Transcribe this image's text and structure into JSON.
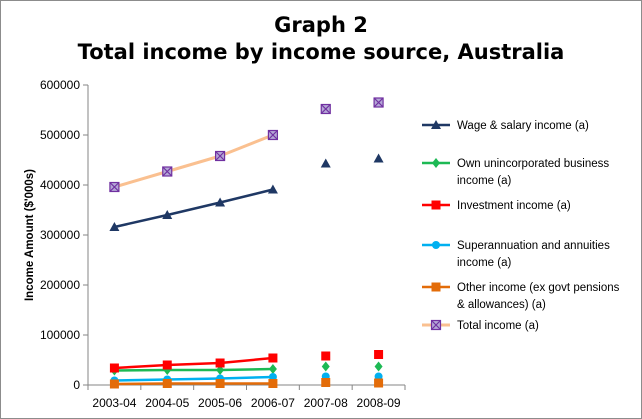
{
  "chart_data": {
    "type": "line",
    "title": "Graph 2",
    "subtitle": "Total income by income source, Australia",
    "xlabel": "",
    "ylabel": "Income Amount ($'000s)",
    "ylim": [
      0,
      600000
    ],
    "yticks": [
      "600000",
      "500000",
      "400000",
      "300000",
      "200000",
      "100000",
      "0"
    ],
    "categories": [
      "2003-04",
      "2004-05",
      "2005-06",
      "2006-07",
      "2007-08",
      "2008-09"
    ],
    "grid": false,
    "legend_position": "right",
    "series": [
      {
        "name": "Wage & salary income (a)",
        "color": "#1f3864",
        "marker": "triangle",
        "values": [
          316000,
          340000,
          365000,
          391000,
          443000,
          453000
        ]
      },
      {
        "name": "Own unincorporated business income (a)",
        "legend_lines": [
          "Own unincorporated business",
          "income (a)"
        ],
        "color": "#1db954",
        "marker": "diamond",
        "values": [
          29000,
          30000,
          30000,
          32000,
          37000,
          37000
        ]
      },
      {
        "name": "Investment income (a)",
        "color": "#ff0000",
        "marker": "square",
        "values": [
          34000,
          40000,
          44000,
          54000,
          58000,
          61000
        ]
      },
      {
        "name": "Superannuation and annuities income (a)",
        "legend_lines": [
          "Superannuation and annuities",
          "income (a)"
        ],
        "color": "#00b0f0",
        "marker": "circle",
        "values": [
          9000,
          11000,
          13000,
          16000,
          17000,
          17000
        ]
      },
      {
        "name": "Other income (ex govt pensions & allowances) (a)",
        "legend_lines": [
          "Other income (ex govt pensions",
          "& allowances) (a)"
        ],
        "color": "#e36c09",
        "marker": "square",
        "values": [
          2000,
          3000,
          3000,
          3000,
          5000,
          4000
        ]
      },
      {
        "name": "Total income (a)",
        "color": "#fac090",
        "marker_color": "#7030a0",
        "marker": "x-square",
        "values": [
          396000,
          427000,
          458000,
          500000,
          552000,
          565000
        ]
      }
    ]
  }
}
